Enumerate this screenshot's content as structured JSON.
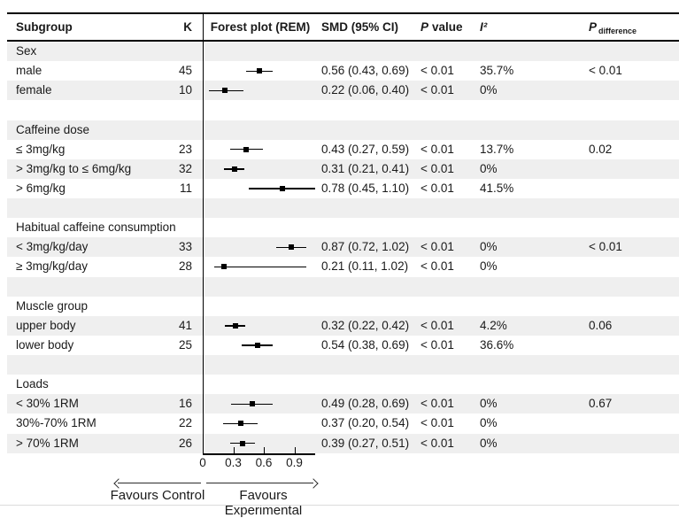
{
  "chart_data": {
    "type": "scatter",
    "variant": "forest-plot (random-effects model subgroup analysis)",
    "title": "Forest plot (REM)",
    "columns": [
      "Subgroup",
      "K",
      "Forest plot (REM)",
      "SMD (95% CI)",
      "P value",
      "I²",
      "P difference"
    ],
    "header": {
      "subgroup": "Subgroup",
      "k": "K",
      "forest_plot": "Forest plot (REM)",
      "smd_ci": "SMD (95% CI)",
      "p_italic": "P",
      "p_word": "value",
      "i2": "I²",
      "p_diff_italic": "P",
      "p_diff_subscript": "difference"
    },
    "groups": [
      {
        "name": "Sex",
        "rows": [
          {
            "label": "male",
            "k": "45",
            "smd": 0.56,
            "ci_low": 0.43,
            "ci_high": 0.69,
            "smd_ci": "0.56 (0.43, 0.69)",
            "p_value": "< 0.01",
            "i2": "35.7%",
            "p_diff": "< 0.01"
          },
          {
            "label": "female",
            "k": "10",
            "smd": 0.22,
            "ci_low": 0.06,
            "ci_high": 0.4,
            "smd_ci": "0.22 (0.06, 0.40)",
            "p_value": "< 0.01",
            "i2": "0%",
            "p_diff": ""
          }
        ]
      },
      {
        "name": "Caffeine dose",
        "rows": [
          {
            "label": "≤ 3mg/kg",
            "k": "23",
            "smd": 0.43,
            "ci_low": 0.27,
            "ci_high": 0.59,
            "smd_ci": "0.43 (0.27, 0.59)",
            "p_value": "< 0.01",
            "i2": "13.7%",
            "p_diff": "0.02"
          },
          {
            "label": "> 3mg/kg to ≤ 6mg/kg",
            "k": "32",
            "smd": 0.31,
            "ci_low": 0.21,
            "ci_high": 0.41,
            "smd_ci": "0.31 (0.21, 0.41)",
            "p_value": "< 0.01",
            "i2": "0%",
            "p_diff": ""
          },
          {
            "label": "> 6mg/kg",
            "k": "11",
            "smd": 0.78,
            "ci_low": 0.45,
            "ci_high": 1.1,
            "smd_ci": "0.78 (0.45, 1.10)",
            "p_value": "< 0.01",
            "i2": "41.5%",
            "p_diff": ""
          }
        ]
      },
      {
        "name": "Habitual caffeine consumption",
        "rows": [
          {
            "label": "< 3mg/kg/day",
            "k": "33",
            "smd": 0.87,
            "ci_low": 0.72,
            "ci_high": 1.02,
            "smd_ci": "0.87 (0.72, 1.02)",
            "p_value": "< 0.01",
            "i2": "0%",
            "p_diff": "< 0.01"
          },
          {
            "label": "≥ 3mg/kg/day",
            "k": "28",
            "smd": 0.21,
            "ci_low": 0.11,
            "ci_high": 1.02,
            "smd_ci": "0.21 (0.11, 1.02)",
            "p_value": "< 0.01",
            "i2": "0%",
            "p_diff": ""
          }
        ]
      },
      {
        "name": "Muscle group",
        "rows": [
          {
            "label": "upper body",
            "k": "41",
            "smd": 0.32,
            "ci_low": 0.22,
            "ci_high": 0.42,
            "smd_ci": "0.32 (0.22, 0.42)",
            "p_value": "< 0.01",
            "i2": "4.2%",
            "p_diff": "0.06"
          },
          {
            "label": "lower body",
            "k": "25",
            "smd": 0.54,
            "ci_low": 0.38,
            "ci_high": 0.69,
            "smd_ci": "0.54 (0.38, 0.69)",
            "p_value": "< 0.01",
            "i2": "36.6%",
            "p_diff": ""
          }
        ]
      },
      {
        "name": "Loads",
        "rows": [
          {
            "label": "< 30% 1RM",
            "k": "16",
            "smd": 0.49,
            "ci_low": 0.28,
            "ci_high": 0.69,
            "smd_ci": "0.49 (0.28, 0.69)",
            "p_value": "< 0.01",
            "i2": "0%",
            "p_diff": "0.67"
          },
          {
            "label": "30%-70% 1RM",
            "k": "22",
            "smd": 0.37,
            "ci_low": 0.2,
            "ci_high": 0.54,
            "smd_ci": "0.37 (0.20, 0.54)",
            "p_value": "< 0.01",
            "i2": "0%",
            "p_diff": ""
          },
          {
            "label": "> 70% 1RM",
            "k": "26",
            "smd": 0.39,
            "ci_low": 0.27,
            "ci_high": 0.51,
            "smd_ci": "0.39 (0.27, 0.51)",
            "p_value": "< 0.01",
            "i2": "0%",
            "p_diff": ""
          }
        ]
      }
    ],
    "xaxis": {
      "tick_values": [
        0,
        0.3,
        0.6,
        0.9
      ],
      "tick_labels": [
        "0",
        "0.3",
        "0.6",
        "0.9"
      ],
      "min": 0,
      "max": 1.11,
      "grid": false
    },
    "footer": {
      "favours_left": "Favours Control",
      "favours_right": "Favours Experimental"
    }
  }
}
